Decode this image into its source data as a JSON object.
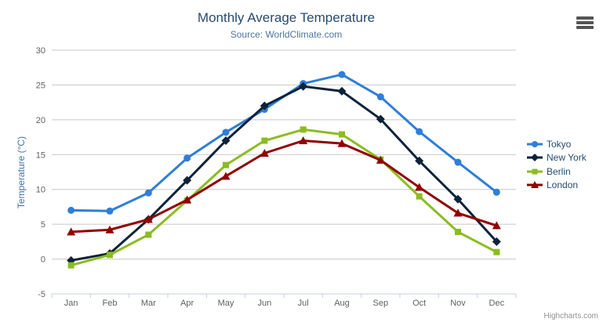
{
  "chart_data": {
    "type": "line",
    "title": "Monthly Average Temperature",
    "subtitle": "Source: WorldClimate.com",
    "xlabel": "",
    "ylabel": "Temperature (°C)",
    "ylim": [
      -5,
      30
    ],
    "ytick_interval": 5,
    "grid": true,
    "legend_position": "right",
    "categories": [
      "Jan",
      "Feb",
      "Mar",
      "Apr",
      "May",
      "Jun",
      "Jul",
      "Aug",
      "Sep",
      "Oct",
      "Nov",
      "Dec"
    ],
    "series": [
      {
        "name": "Tokyo",
        "color": "#2f7ed8",
        "marker": "circle",
        "values": [
          7.0,
          6.9,
          9.5,
          14.5,
          18.2,
          21.5,
          25.2,
          26.5,
          23.3,
          18.3,
          13.9,
          9.6
        ]
      },
      {
        "name": "New York",
        "color": "#0d233a",
        "marker": "diamond",
        "values": [
          -0.2,
          0.8,
          5.7,
          11.3,
          17.0,
          22.0,
          24.8,
          24.1,
          20.1,
          14.1,
          8.6,
          2.5
        ]
      },
      {
        "name": "Berlin",
        "color": "#8bbc21",
        "marker": "square",
        "values": [
          -0.9,
          0.6,
          3.5,
          8.4,
          13.5,
          17.0,
          18.6,
          17.9,
          14.3,
          9.0,
          3.9,
          1.0
        ]
      },
      {
        "name": "London",
        "color": "#910000",
        "marker": "triangle",
        "values": [
          3.9,
          4.2,
          5.7,
          8.5,
          11.9,
          15.2,
          17.0,
          16.6,
          14.2,
          10.3,
          6.6,
          4.8
        ]
      }
    ]
  },
  "export_menu": {
    "icon": "hamburger-menu-icon"
  },
  "credits": {
    "label": "Highcharts.com"
  },
  "colors": {
    "title": "#274b6d",
    "subtitle": "#4d759e",
    "axis_labels": "#606060",
    "y_axis_title": "#4572a7",
    "legend_text": "#274b6d",
    "gridline": "#c8c8c8",
    "axis_line": "#c0d0e0"
  }
}
